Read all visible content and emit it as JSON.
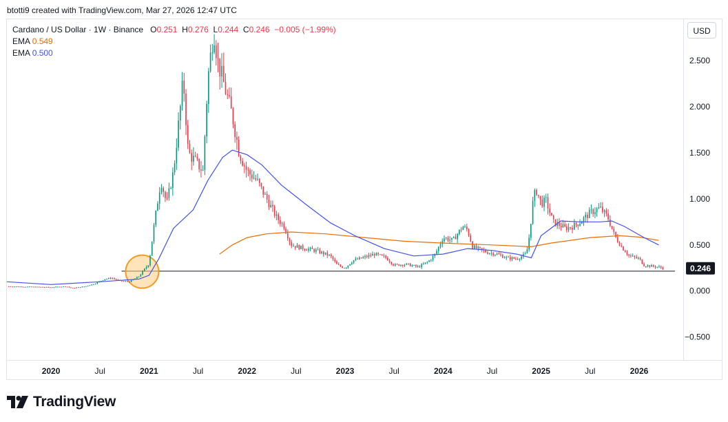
{
  "attribution": "btotti9 created with TradingView.com, Mar 27, 2026 12:47 UTC",
  "legend": {
    "symbol": "Cardano / US Dollar · 1W · Binance",
    "open_label": "O",
    "open": "0.251",
    "high_label": "H",
    "high": "0.276",
    "low_label": "L",
    "low": "0.244",
    "close_label": "C",
    "close": "0.246",
    "change": "−0.005 (−1.99%)",
    "ema1_label": "EMA",
    "ema1_value": "0.549",
    "ema2_label": "EMA",
    "ema2_value": "0.500"
  },
  "currency_button": "USD",
  "price_badge": "0.246",
  "brand": "TradingView",
  "colors": {
    "up": "#089981",
    "down": "#f23645",
    "ema_long": "#ef6c00",
    "ema_short": "#3f51f5",
    "highlight_fill": "#ffcc80",
    "highlight_stroke": "#f59a23",
    "badge_bg": "#131722"
  },
  "chart_data": {
    "type": "line",
    "title": "Cardano / US Dollar · 1W · Binance",
    "ylim": [
      -0.75,
      2.95
    ],
    "y_ticks": [
      2.5,
      2.0,
      1.5,
      1.0,
      0.5,
      0.0,
      -0.5
    ],
    "y_tick_labels": [
      "2.500",
      "2.000",
      "1.500",
      "1.000",
      "0.500",
      "0.000",
      "−0.500"
    ],
    "x_range": [
      2019.55,
      2026.45
    ],
    "x_ticks": [
      {
        "label": "2020",
        "x": 2020.0,
        "major": true
      },
      {
        "label": "Jul",
        "x": 2020.5,
        "major": false
      },
      {
        "label": "2021",
        "x": 2021.0,
        "major": true
      },
      {
        "label": "Jul",
        "x": 2021.5,
        "major": false
      },
      {
        "label": "2022",
        "x": 2022.0,
        "major": true
      },
      {
        "label": "Jul",
        "x": 2022.5,
        "major": false
      },
      {
        "label": "2023",
        "x": 2023.0,
        "major": true
      },
      {
        "label": "Jul",
        "x": 2023.5,
        "major": false
      },
      {
        "label": "2024",
        "x": 2024.0,
        "major": true
      },
      {
        "label": "Jul",
        "x": 2024.5,
        "major": false
      },
      {
        "label": "2025",
        "x": 2025.0,
        "major": true
      },
      {
        "label": "Jul",
        "x": 2025.5,
        "major": false
      },
      {
        "label": "2026",
        "x": 2026.0,
        "major": true
      }
    ],
    "horizontal_line": 0.215,
    "highlight": {
      "x": 2020.93,
      "y": 0.21
    },
    "price_path": [
      [
        2019.55,
        0.05
      ],
      [
        2019.8,
        0.045
      ],
      [
        2020.0,
        0.04
      ],
      [
        2020.15,
        0.05
      ],
      [
        2020.22,
        0.03
      ],
      [
        2020.35,
        0.05
      ],
      [
        2020.45,
        0.08
      ],
      [
        2020.55,
        0.13
      ],
      [
        2020.62,
        0.14
      ],
      [
        2020.7,
        0.11
      ],
      [
        2020.8,
        0.1
      ],
      [
        2020.9,
        0.16
      ],
      [
        2021.0,
        0.3
      ],
      [
        2021.05,
        0.7
      ],
      [
        2021.12,
        1.2
      ],
      [
        2021.18,
        0.95
      ],
      [
        2021.25,
        1.3
      ],
      [
        2021.35,
        2.3
      ],
      [
        2021.4,
        1.5
      ],
      [
        2021.48,
        1.4
      ],
      [
        2021.55,
        1.3
      ],
      [
        2021.6,
        2.3
      ],
      [
        2021.66,
        2.85
      ],
      [
        2021.7,
        2.5
      ],
      [
        2021.75,
        2.3
      ],
      [
        2021.8,
        2.1
      ],
      [
        2021.85,
        1.9
      ],
      [
        2021.92,
        1.5
      ],
      [
        2022.0,
        1.3
      ],
      [
        2022.1,
        1.2
      ],
      [
        2022.2,
        1.0
      ],
      [
        2022.3,
        0.8
      ],
      [
        2022.38,
        0.7
      ],
      [
        2022.45,
        0.5
      ],
      [
        2022.55,
        0.47
      ],
      [
        2022.7,
        0.44
      ],
      [
        2022.85,
        0.38
      ],
      [
        2022.92,
        0.28
      ],
      [
        2023.0,
        0.25
      ],
      [
        2023.08,
        0.33
      ],
      [
        2023.18,
        0.36
      ],
      [
        2023.3,
        0.4
      ],
      [
        2023.42,
        0.36
      ],
      [
        2023.5,
        0.28
      ],
      [
        2023.62,
        0.29
      ],
      [
        2023.75,
        0.26
      ],
      [
        2023.85,
        0.32
      ],
      [
        2023.92,
        0.4
      ],
      [
        2024.0,
        0.58
      ],
      [
        2024.1,
        0.55
      ],
      [
        2024.2,
        0.7
      ],
      [
        2024.25,
        0.66
      ],
      [
        2024.3,
        0.48
      ],
      [
        2024.45,
        0.42
      ],
      [
        2024.55,
        0.4
      ],
      [
        2024.65,
        0.36
      ],
      [
        2024.75,
        0.35
      ],
      [
        2024.85,
        0.4
      ],
      [
        2024.88,
        0.6
      ],
      [
        2024.92,
        1.0
      ],
      [
        2024.95,
        1.1
      ],
      [
        2025.0,
        0.95
      ],
      [
        2025.05,
        0.98
      ],
      [
        2025.12,
        0.75
      ],
      [
        2025.18,
        0.72
      ],
      [
        2025.25,
        0.68
      ],
      [
        2025.32,
        0.7
      ],
      [
        2025.4,
        0.75
      ],
      [
        2025.5,
        0.85
      ],
      [
        2025.6,
        0.9
      ],
      [
        2025.68,
        0.8
      ],
      [
        2025.75,
        0.6
      ],
      [
        2025.82,
        0.48
      ],
      [
        2025.9,
        0.38
      ],
      [
        2026.0,
        0.35
      ],
      [
        2026.05,
        0.28
      ],
      [
        2026.12,
        0.27
      ],
      [
        2026.2,
        0.26
      ],
      [
        2026.25,
        0.246
      ]
    ],
    "series": [
      {
        "name": "EMA 0.549",
        "color": "#ef6c00",
        "points": [
          [
            2021.72,
            0.4
          ],
          [
            2021.85,
            0.5
          ],
          [
            2022.0,
            0.58
          ],
          [
            2022.2,
            0.62
          ],
          [
            2022.45,
            0.64
          ],
          [
            2022.8,
            0.62
          ],
          [
            2023.2,
            0.58
          ],
          [
            2023.6,
            0.54
          ],
          [
            2024.0,
            0.52
          ],
          [
            2024.5,
            0.5
          ],
          [
            2024.9,
            0.48
          ],
          [
            2025.1,
            0.52
          ],
          [
            2025.5,
            0.58
          ],
          [
            2025.8,
            0.6
          ],
          [
            2026.0,
            0.585
          ],
          [
            2026.2,
            0.549
          ]
        ]
      },
      {
        "name": "EMA 0.500",
        "color": "#3f51f5",
        "points": [
          [
            2019.55,
            0.1
          ],
          [
            2020.0,
            0.07
          ],
          [
            2020.5,
            0.1
          ],
          [
            2020.9,
            0.13
          ],
          [
            2021.0,
            0.17
          ],
          [
            2021.1,
            0.35
          ],
          [
            2021.25,
            0.68
          ],
          [
            2021.45,
            0.88
          ],
          [
            2021.6,
            1.2
          ],
          [
            2021.75,
            1.45
          ],
          [
            2021.85,
            1.53
          ],
          [
            2022.0,
            1.48
          ],
          [
            2022.15,
            1.37
          ],
          [
            2022.35,
            1.15
          ],
          [
            2022.6,
            0.94
          ],
          [
            2022.85,
            0.74
          ],
          [
            2023.1,
            0.6
          ],
          [
            2023.4,
            0.46
          ],
          [
            2023.7,
            0.38
          ],
          [
            2024.0,
            0.4
          ],
          [
            2024.25,
            0.46
          ],
          [
            2024.5,
            0.44
          ],
          [
            2024.75,
            0.4
          ],
          [
            2024.9,
            0.36
          ],
          [
            2025.0,
            0.6
          ],
          [
            2025.2,
            0.76
          ],
          [
            2025.4,
            0.75
          ],
          [
            2025.6,
            0.75
          ],
          [
            2025.72,
            0.76
          ],
          [
            2025.85,
            0.7
          ],
          [
            2026.05,
            0.58
          ],
          [
            2026.2,
            0.5
          ]
        ]
      }
    ]
  }
}
